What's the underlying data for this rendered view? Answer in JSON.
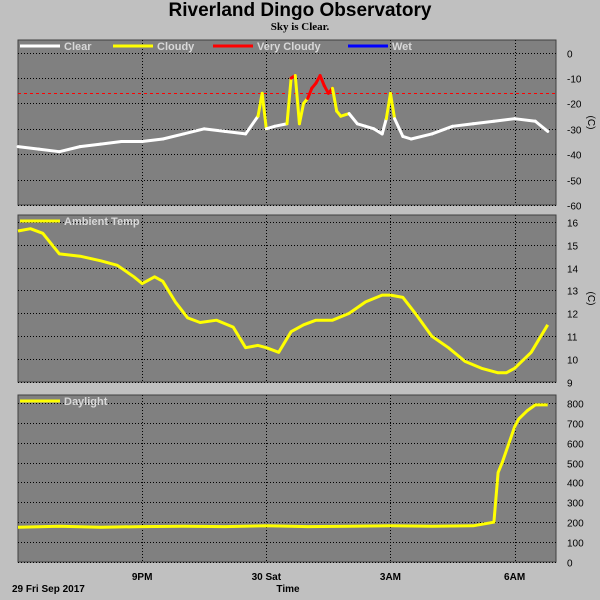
{
  "header": {
    "title": "Riverland Dingo Observatory",
    "subtitle": "Sky is Clear."
  },
  "footer": {
    "date_label": "29 Fri Sep 2017",
    "xlabel": "Time"
  },
  "colors": {
    "plot_bg": "#808080",
    "page_bg": "#c0c0c0",
    "grid": "#000000",
    "clear": "#ffffff",
    "cloudy": "#ffff00",
    "very_cloudy": "#ff0000",
    "wet": "#0000ff",
    "threshold": "#ff0000"
  },
  "chart_data": [
    {
      "type": "line",
      "name": "sky",
      "ylabel": "(C)",
      "ylim": [
        -60,
        5
      ],
      "yticks": [
        0,
        -10,
        -20,
        -30,
        -40,
        -50,
        -60
      ],
      "xlim": [
        18,
        31
      ],
      "xticks": [
        {
          "x": 21,
          "label": "9PM"
        },
        {
          "x": 24,
          "label": "30 Sat"
        },
        {
          "x": 27,
          "label": "3AM"
        },
        {
          "x": 30,
          "label": "6AM"
        }
      ],
      "grid": true,
      "threshold": -16,
      "legend": [
        {
          "label": "Clear",
          "color": "#ffffff"
        },
        {
          "label": "Cloudy",
          "color": "#ffff00"
        },
        {
          "label": "Very Cloudy",
          "color": "#ff0000"
        },
        {
          "label": "Wet",
          "color": "#0000ff"
        }
      ],
      "x": [
        18,
        18.5,
        19,
        19.5,
        20,
        20.5,
        21,
        21.5,
        22,
        22.5,
        23,
        23.5,
        23.8,
        23.9,
        24.0,
        24.2,
        24.5,
        24.6,
        24.7,
        24.8,
        24.9,
        25.0,
        25.1,
        25.2,
        25.3,
        25.4,
        25.5,
        25.6,
        25.7,
        25.8,
        26.0,
        26.2,
        26.4,
        26.6,
        26.8,
        26.9,
        27.0,
        27.1,
        27.3,
        27.5,
        28.0,
        28.5,
        29.0,
        29.5,
        30.0,
        30.5,
        30.8
      ],
      "y": [
        -37,
        -38,
        -39,
        -37,
        -36,
        -35,
        -35,
        -34,
        -32,
        -30,
        -31,
        -32,
        -25,
        -16,
        -30,
        -29,
        -28,
        -10,
        -9,
        -28,
        -20,
        -18,
        -14,
        -12,
        -9,
        -13,
        -16,
        -14,
        -23,
        -25,
        -24,
        -28,
        -29,
        -30,
        -32,
        -26,
        -16,
        -26,
        -33,
        -34,
        -32,
        -29,
        -28,
        -27,
        -26,
        -27,
        -31
      ],
      "series": [
        {
          "name": "Clear",
          "color": "#ffffff"
        },
        {
          "name": "Cloudy",
          "color": "#ffff00"
        },
        {
          "name": "Very Cloudy",
          "color": "#ff0000"
        }
      ]
    },
    {
      "type": "line",
      "name": "ambient",
      "ylabel": "(C)",
      "ylim": [
        9,
        16.3
      ],
      "yticks": [
        16,
        15,
        14,
        13,
        12,
        11,
        10,
        9
      ],
      "xlim": [
        18,
        31
      ],
      "grid": true,
      "legend": [
        {
          "label": "Ambient Temp",
          "color": "#ffff00"
        }
      ],
      "series": [
        {
          "name": "Ambient Temp",
          "color": "#ffff00",
          "x": [
            18,
            18.3,
            18.6,
            19,
            19.5,
            20,
            20.4,
            20.8,
            21,
            21.3,
            21.5,
            21.8,
            22.1,
            22.4,
            22.8,
            23.2,
            23.5,
            23.8,
            24.0,
            24.3,
            24.6,
            24.9,
            25.2,
            25.6,
            26.0,
            26.4,
            26.8,
            27.0,
            27.3,
            27.6,
            28.0,
            28.4,
            28.8,
            29.2,
            29.6,
            29.8,
            30.0,
            30.4,
            30.8
          ],
          "y": [
            15.6,
            15.7,
            15.5,
            14.6,
            14.5,
            14.3,
            14.1,
            13.6,
            13.3,
            13.6,
            13.4,
            12.5,
            11.8,
            11.6,
            11.7,
            11.4,
            10.5,
            10.6,
            10.5,
            10.3,
            11.2,
            11.5,
            11.7,
            11.7,
            12.0,
            12.5,
            12.8,
            12.8,
            12.7,
            12.0,
            11.0,
            10.5,
            9.9,
            9.6,
            9.4,
            9.4,
            9.6,
            10.3,
            11.5
          ]
        }
      ]
    },
    {
      "type": "line",
      "name": "daylight",
      "ylabel": "",
      "ylim": [
        0,
        840
      ],
      "yticks": [
        800,
        700,
        600,
        500,
        400,
        300,
        200,
        100,
        0
      ],
      "xlim": [
        18,
        31
      ],
      "grid": true,
      "legend": [
        {
          "label": "Daylight",
          "color": "#ffff00"
        }
      ],
      "series": [
        {
          "name": "Daylight",
          "color": "#ffff00",
          "x": [
            18,
            19,
            20,
            21,
            22,
            23,
            24,
            25,
            26,
            27,
            28,
            29,
            29.5,
            29.6,
            29.7,
            29.8,
            29.9,
            30.0,
            30.1,
            30.3,
            30.5,
            30.8
          ],
          "y": [
            175,
            180,
            175,
            178,
            180,
            178,
            182,
            178,
            180,
            182,
            180,
            182,
            200,
            450,
            500,
            560,
            620,
            680,
            720,
            760,
            790,
            790
          ]
        }
      ]
    }
  ]
}
